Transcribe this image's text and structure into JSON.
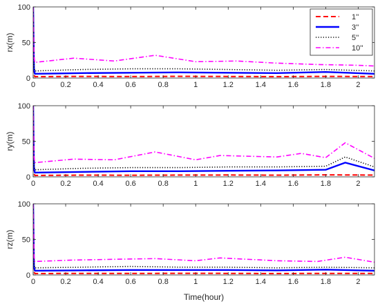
{
  "figure": {
    "xlabel": "Time(hour)"
  },
  "chart_data": [
    {
      "type": "line",
      "ylabel": "rx(m)",
      "xlim": [
        0,
        2.1
      ],
      "ylim": [
        0,
        100
      ],
      "xticks": [
        0,
        0.2,
        0.4,
        0.6,
        0.8,
        1,
        1.2,
        1.4,
        1.6,
        1.8,
        2
      ],
      "xtick_labels": [
        "0",
        "0.2",
        "0.4",
        "0.6",
        "0.8",
        "1",
        "1.2",
        "1.4",
        "1.6",
        "1.8",
        "2"
      ],
      "yticks": [
        0,
        50,
        100
      ],
      "ytick_labels": [
        "0",
        "50",
        "100"
      ],
      "legend": {
        "placement": "top-right",
        "entries": [
          "1''",
          "3''",
          "5''",
          "10''"
        ]
      },
      "series": [
        {
          "name": "1''",
          "color": "#ff0000",
          "style": "dashed",
          "x": [
            0,
            0.005,
            0.01,
            0.3,
            0.6,
            0.9,
            1.2,
            1.5,
            1.8,
            2.1
          ],
          "y": [
            100,
            5,
            2,
            2.3,
            2.1,
            2.4,
            2.2,
            2.0,
            2.3,
            2.1
          ]
        },
        {
          "name": "3''",
          "color": "#0000ff",
          "style": "solid",
          "x": [
            0,
            0.005,
            0.01,
            0.3,
            0.6,
            0.9,
            1.2,
            1.5,
            1.8,
            2.1
          ],
          "y": [
            100,
            12,
            6,
            7,
            7.5,
            8,
            7.5,
            7,
            8.5,
            6
          ]
        },
        {
          "name": "5''",
          "color": "#000000",
          "style": "dotted",
          "x": [
            0,
            0.005,
            0.01,
            0.3,
            0.6,
            0.9,
            1.2,
            1.5,
            1.8,
            2.1
          ],
          "y": [
            100,
            16,
            10,
            12,
            13,
            13,
            12,
            11,
            12,
            10
          ]
        },
        {
          "name": "10''",
          "color": "#ff00ff",
          "style": "dashdot",
          "x": [
            0,
            0.005,
            0.01,
            0.25,
            0.5,
            0.75,
            1.0,
            1.25,
            1.5,
            1.75,
            2.0,
            2.1
          ],
          "y": [
            100,
            30,
            22,
            28,
            24,
            32,
            23,
            24,
            21,
            19,
            18,
            17
          ]
        }
      ]
    },
    {
      "type": "line",
      "ylabel": "ry(m)",
      "xlim": [
        0,
        2.1
      ],
      "ylim": [
        0,
        100
      ],
      "xticks": [
        0,
        0.2,
        0.4,
        0.6,
        0.8,
        1,
        1.2,
        1.4,
        1.6,
        1.8,
        2
      ],
      "xtick_labels": [
        "0",
        "0.2",
        "0.4",
        "0.6",
        "0.8",
        "1",
        "1.2",
        "1.4",
        "1.6",
        "1.8",
        "2"
      ],
      "yticks": [
        0,
        50,
        100
      ],
      "ytick_labels": [
        "0",
        "50",
        "100"
      ],
      "series": [
        {
          "name": "1''",
          "color": "#ff0000",
          "style": "dashed",
          "x": [
            0,
            0.005,
            0.01,
            0.3,
            0.6,
            0.9,
            1.2,
            1.5,
            1.8,
            2.1
          ],
          "y": [
            100,
            5,
            2,
            2.4,
            2.3,
            2.5,
            2.6,
            2.4,
            2.8,
            2.5
          ]
        },
        {
          "name": "3''",
          "color": "#0000ff",
          "style": "solid",
          "x": [
            0,
            0.005,
            0.01,
            0.3,
            0.6,
            0.9,
            1.2,
            1.5,
            1.8,
            1.92,
            2.1
          ],
          "y": [
            100,
            12,
            6,
            7,
            8,
            8,
            8.5,
            9,
            10,
            20,
            9
          ]
        },
        {
          "name": "5''",
          "color": "#000000",
          "style": "dotted",
          "x": [
            0,
            0.005,
            0.01,
            0.3,
            0.6,
            0.9,
            1.2,
            1.5,
            1.8,
            1.92,
            2.1
          ],
          "y": [
            100,
            16,
            10,
            12,
            13,
            13,
            14,
            14,
            15,
            28,
            14
          ]
        },
        {
          "name": "10''",
          "color": "#ff00ff",
          "style": "dashdot",
          "x": [
            0,
            0.005,
            0.01,
            0.25,
            0.5,
            0.75,
            1.0,
            1.15,
            1.5,
            1.65,
            1.8,
            1.92,
            2.1
          ],
          "y": [
            100,
            28,
            20,
            25,
            24,
            35,
            24,
            30,
            28,
            33,
            27,
            48,
            26
          ]
        }
      ]
    },
    {
      "type": "line",
      "ylabel": "rz(m)",
      "xlim": [
        0,
        2.1
      ],
      "ylim": [
        0,
        100
      ],
      "xticks": [
        0,
        0.2,
        0.4,
        0.6,
        0.8,
        1,
        1.2,
        1.4,
        1.6,
        1.8,
        2
      ],
      "xtick_labels": [
        "0",
        "0.2",
        "0.4",
        "0.6",
        "0.8",
        "1",
        "1.2",
        "1.4",
        "1.6",
        "1.8",
        "2"
      ],
      "yticks": [
        0,
        50,
        100
      ],
      "ytick_labels": [
        "0",
        "50",
        "100"
      ],
      "series": [
        {
          "name": "1''",
          "color": "#ff0000",
          "style": "dashed",
          "x": [
            0,
            0.005,
            0.01,
            0.3,
            0.6,
            0.9,
            1.2,
            1.5,
            1.8,
            2.1
          ],
          "y": [
            100,
            5,
            2,
            2.2,
            2.1,
            2.3,
            2.2,
            2.0,
            2.2,
            2.1
          ]
        },
        {
          "name": "3''",
          "color": "#0000ff",
          "style": "solid",
          "x": [
            0,
            0.005,
            0.01,
            0.3,
            0.6,
            0.9,
            1.2,
            1.5,
            1.8,
            2.1
          ],
          "y": [
            100,
            12,
            6,
            6.5,
            7,
            7,
            7,
            6.5,
            7.5,
            6
          ]
        },
        {
          "name": "5''",
          "color": "#000000",
          "style": "dotted",
          "x": [
            0,
            0.005,
            0.01,
            0.3,
            0.6,
            0.9,
            1.2,
            1.5,
            1.8,
            2.1
          ],
          "y": [
            100,
            15,
            10,
            11,
            12,
            11,
            11,
            10,
            11,
            10
          ]
        },
        {
          "name": "10''",
          "color": "#ff00ff",
          "style": "dashdot",
          "x": [
            0,
            0.005,
            0.01,
            0.25,
            0.5,
            0.75,
            1.0,
            1.15,
            1.5,
            1.75,
            1.92,
            2.1
          ],
          "y": [
            100,
            26,
            19,
            21,
            22,
            23,
            20,
            24,
            20,
            19,
            25,
            18
          ]
        }
      ]
    }
  ]
}
